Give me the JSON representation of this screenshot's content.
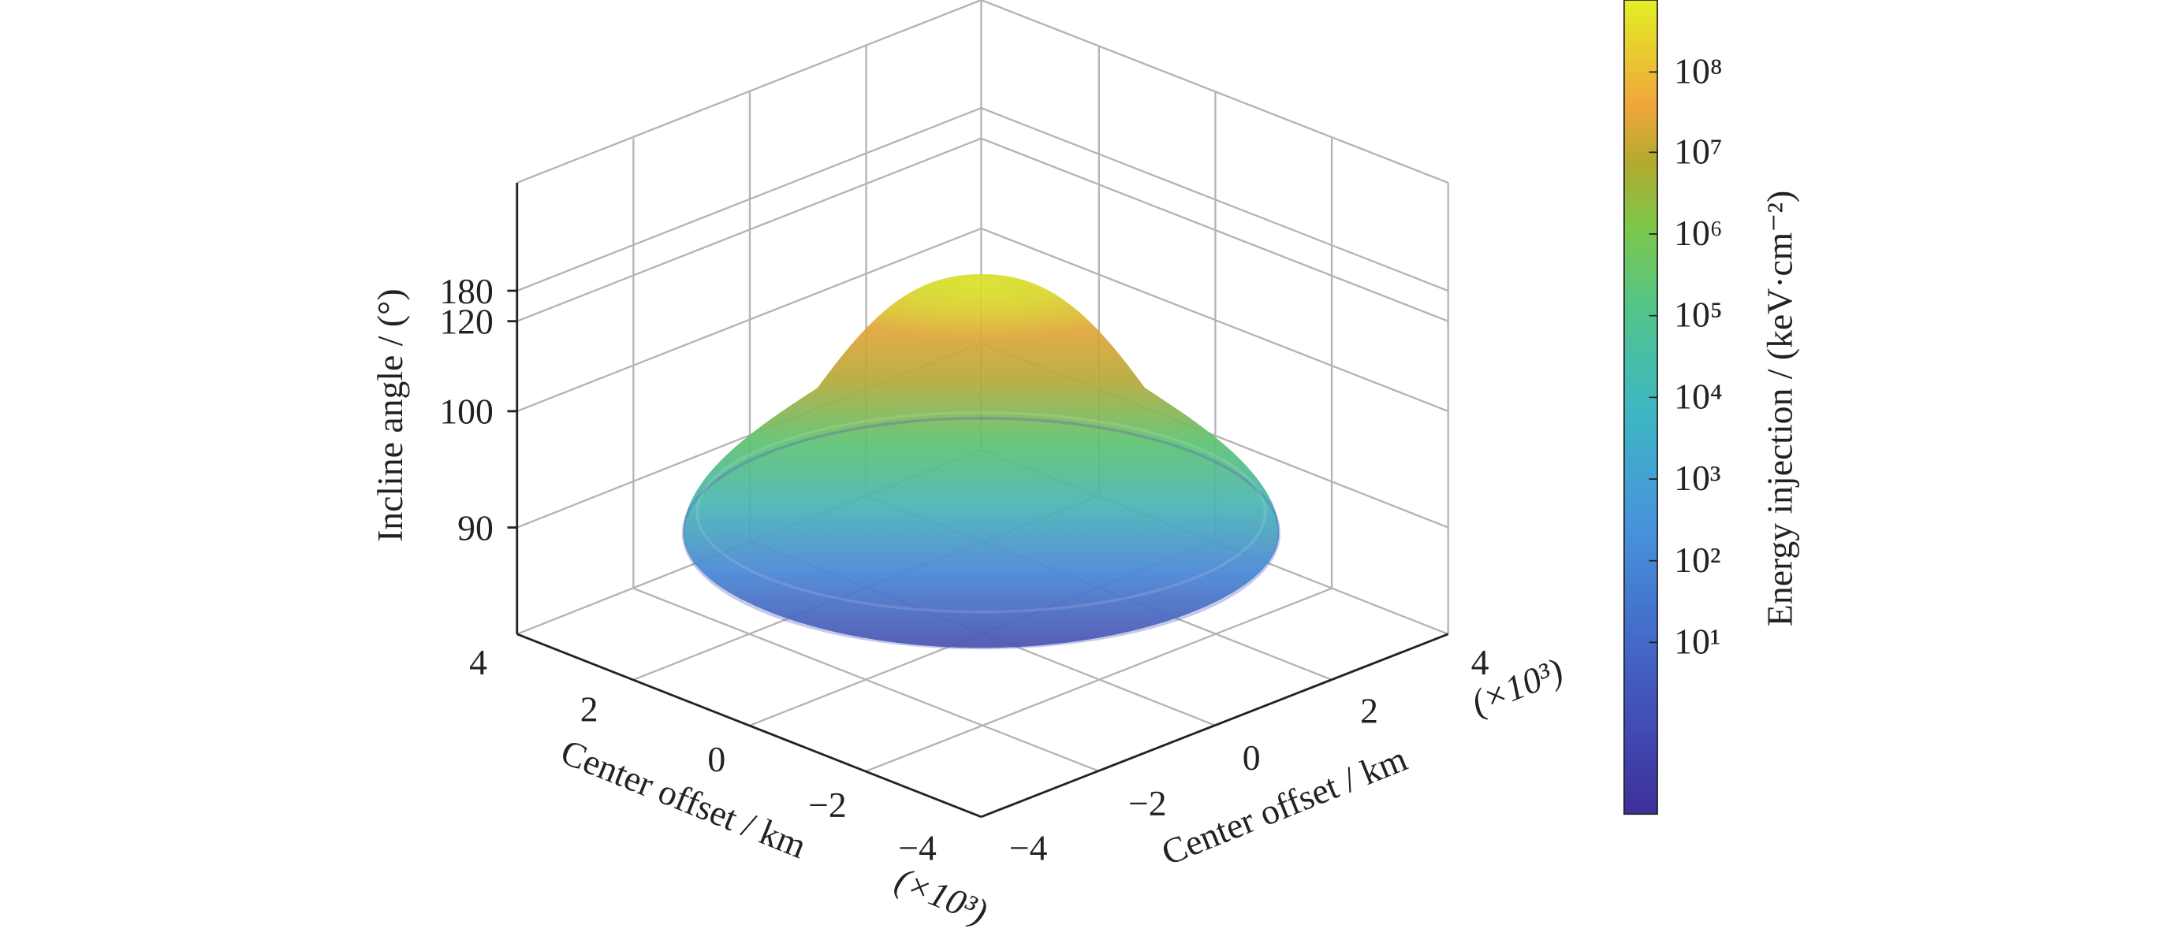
{
  "chart_data": {
    "type": "surface",
    "title": "",
    "xlabel": "Center offset / km",
    "ylabel": "Center offset / km",
    "zlabel": "Incline angle / (°)",
    "x_multiplier": "(×10³)",
    "y_multiplier": "(×10³)",
    "x_ticks": [
      "4",
      "2",
      "0",
      "−2",
      "−4"
    ],
    "y_ticks": [
      "−4",
      "−2",
      "0",
      "2",
      "4"
    ],
    "z_ticks": [
      "180",
      "120",
      "100",
      "90"
    ],
    "xlim": [
      -4,
      4
    ],
    "ylim": [
      -4,
      4
    ],
    "zlim": [
      80,
      180
    ],
    "grid": true,
    "surface": {
      "shape": "dome",
      "base_radius_km": 2600,
      "peak_incline_deg": 180,
      "colormap": "parula",
      "color_scale": "log"
    },
    "colorbar": {
      "label": "Energy injection  / (keV·cm⁻²)",
      "ticks": [
        "10¹",
        "10²",
        "10³",
        "10⁴",
        "10⁵",
        "10⁶",
        "10⁷",
        "10⁸"
      ],
      "range_log10": [
        0.2,
        8.7
      ],
      "placement": "right"
    }
  }
}
